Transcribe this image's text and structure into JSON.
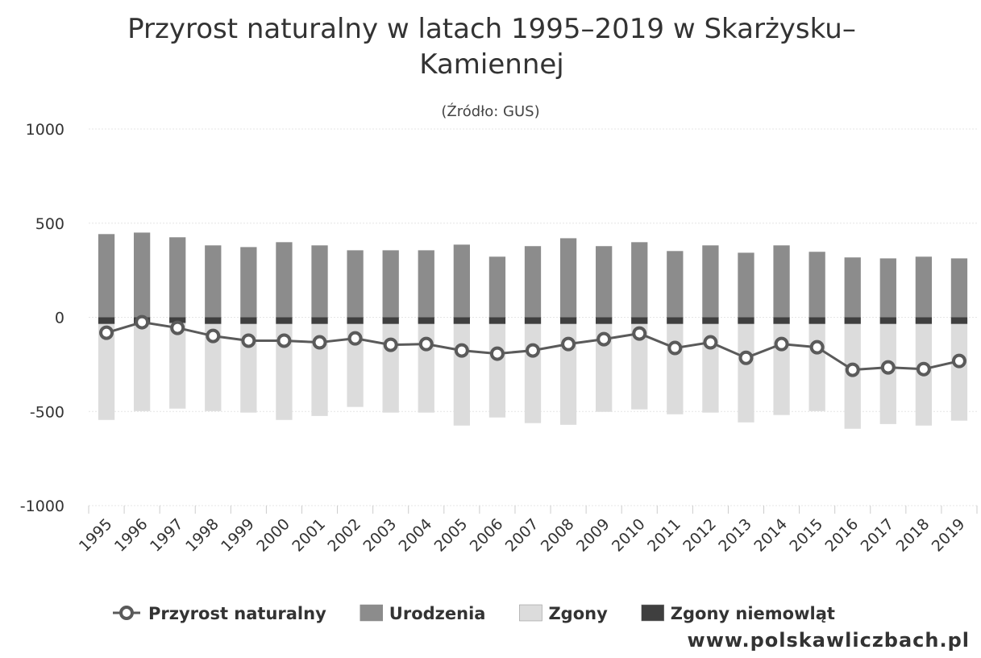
{
  "chart_data": {
    "type": "bar",
    "title": "Przyrost naturalny w latach 1995–2019 w Skarżysku–Kamiennej",
    "subtitle": "(Źródło: GUS)",
    "watermark": "www.polskawliczbach.pl",
    "categories": [
      "1995",
      "1996",
      "1997",
      "1998",
      "1999",
      "2000",
      "2001",
      "2002",
      "2003",
      "2004",
      "2005",
      "2006",
      "2007",
      "2008",
      "2009",
      "2010",
      "2011",
      "2012",
      "2013",
      "2014",
      "2015",
      "2016",
      "2017",
      "2018",
      "2019"
    ],
    "series": [
      {
        "name": "Przyrost naturalny",
        "type": "line",
        "color": "#5a5a5a",
        "values": [
          -82,
          -26,
          -56,
          -99,
          -124,
          -124,
          -133,
          -112,
          -146,
          -142,
          -176,
          -193,
          -176,
          -142,
          -116,
          -86,
          -163,
          -133,
          -215,
          -142,
          -159,
          -279,
          -266,
          -275,
          -232
        ]
      },
      {
        "name": "Urodzenia",
        "type": "bar",
        "color": "#8c8c8c",
        "values": [
          442,
          450,
          425,
          382,
          373,
          399,
          382,
          356,
          356,
          356,
          386,
          322,
          378,
          420,
          378,
          399,
          352,
          382,
          343,
          382,
          348,
          318,
          313,
          322,
          313
        ]
      },
      {
        "name": "Zgony",
        "type": "bar",
        "color": "#dcdcdc",
        "values": [
          -545,
          -498,
          -485,
          -498,
          -506,
          -545,
          -524,
          -476,
          -506,
          -506,
          -575,
          -532,
          -562,
          -571,
          -502,
          -489,
          -515,
          -506,
          -558,
          -519,
          -498,
          -592,
          -567,
          -575,
          -549
        ]
      },
      {
        "name": "Zgony niemowląt",
        "type": "bar",
        "color": "#3f3f3f",
        "values": [
          -35,
          -35,
          -30,
          -35,
          -35,
          -35,
          -35,
          -35,
          -35,
          -35,
          -35,
          -35,
          -35,
          -35,
          -35,
          -35,
          -35,
          -35,
          -35,
          -35,
          -35,
          -35,
          -35,
          -35,
          -35
        ]
      }
    ],
    "ylim": [
      -1000,
      1000
    ],
    "yticks": [
      -1000,
      -500,
      0,
      500,
      1000
    ],
    "grid": true
  }
}
